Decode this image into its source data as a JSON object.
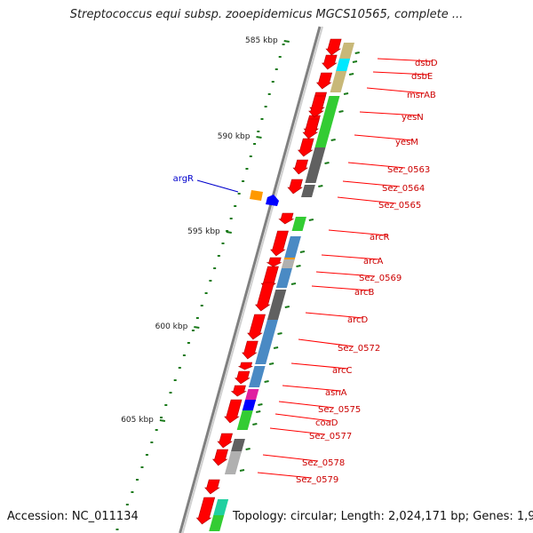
{
  "title": "Streptococcus equi subsp. zooepidemicus MGCS10565, complete ...",
  "accession": "Accession: NC_011134",
  "topology": "Topology: circular; Length: 2,024,171 bp; Genes: 1,965",
  "colors": {
    "gene_red": "#ff0000",
    "label_red": "#cc0000",
    "label_blue": "#0000cc",
    "tick_green": "#1a7a1a",
    "backbone": "#808080",
    "khaki": "#c8b878",
    "cyan": "#00e8ff",
    "green": "#33cc33",
    "dark_gray": "#606060",
    "steel_blue": "#4a8ac4",
    "orange": "#ff9900",
    "magenta": "#e020a0",
    "blue": "#0000ff",
    "light_gray": "#b0b0b0",
    "light_green": "#88dd88",
    "teal": "#20d0a0"
  },
  "ticks": [
    {
      "label": "585 kbp"
    },
    {
      "label": "590 kbp"
    },
    {
      "label": "595 kbp"
    },
    {
      "label": "600 kbp"
    },
    {
      "label": "605 kbp"
    }
  ],
  "genes": [
    {
      "label": "dsbD"
    },
    {
      "label": "dsbE"
    },
    {
      "label": "msrAB"
    },
    {
      "label": "yesN"
    },
    {
      "label": "yesM"
    },
    {
      "label": "Sez_0563"
    },
    {
      "label": "Sez_0564"
    },
    {
      "label": "Sez_0565"
    },
    {
      "label": "arcR"
    },
    {
      "label": "arcA"
    },
    {
      "label": "Sez_0569"
    },
    {
      "label": "arcB"
    },
    {
      "label": "arcD"
    },
    {
      "label": "Sez_0572"
    },
    {
      "label": "arcC"
    },
    {
      "label": "asnA"
    },
    {
      "label": "Sez_0575"
    },
    {
      "label": "coaD"
    },
    {
      "label": "Sez_0577"
    },
    {
      "label": "Sez_0578"
    },
    {
      "label": "Sez_0579"
    }
  ],
  "reverse_genes": [
    {
      "label": "argR"
    }
  ]
}
